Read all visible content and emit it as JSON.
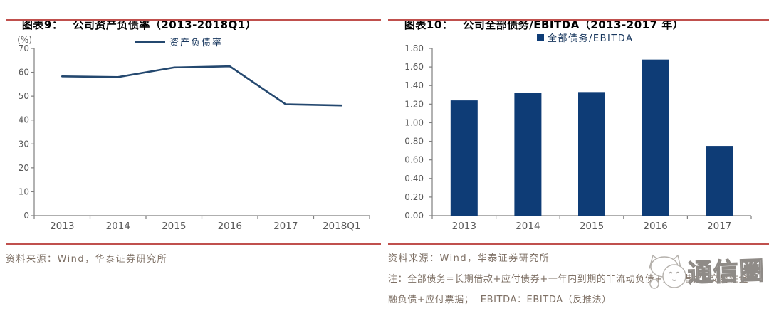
{
  "colors": {
    "navy_line": "#24486f",
    "navy_bar": "#0e3c76",
    "rule_red": "#c0504d",
    "muted_text": "#7e7065",
    "axis": "#7f7f7f",
    "tick_label": "#595959",
    "legend_text": "#17365d"
  },
  "figure9": {
    "label": "图表9：",
    "title": "公司资产负债率（2013-2018Q1）",
    "source": "资料来源：Wind，华泰证券研究所"
  },
  "figure10": {
    "label": "图表10：",
    "title": "公司全部债务/EBITDA（2013-2017 年）",
    "source": "资料来源：Wind，华泰证券研究所",
    "note_line1": "注：全部债务=长期借款+应付债券+一年内到期的非流动负债+短期借款+交易性金",
    "note_line2": "融负债+应付票据；  EBITDA：EBITDA（反推法）"
  },
  "watermark": {
    "text": "通信圈",
    "icon": "cat-face-logo"
  },
  "chart_data": [
    {
      "id": "chart9",
      "type": "line",
      "title": "公司资产负债率（2013-2018Q1）",
      "unit_label": "(%)",
      "legend": [
        "资产负债率"
      ],
      "categories": [
        "2013",
        "2014",
        "2015",
        "2016",
        "2017",
        "2018Q1"
      ],
      "series": [
        {
          "name": "资产负债率",
          "values": [
            58.3,
            58.0,
            62.0,
            62.5,
            46.6,
            46.1
          ]
        }
      ],
      "ylim": [
        0,
        70
      ],
      "yticks": [
        "0",
        "10",
        "20",
        "30",
        "40",
        "50",
        "60",
        "70"
      ],
      "grid": false,
      "legend_position": "top-center"
    },
    {
      "id": "chart10",
      "type": "bar",
      "title": "公司全部债务/EBITDA（2013-2017 年）",
      "unit_label": "",
      "legend": [
        "全部债务/EBITDA"
      ],
      "categories": [
        "2013",
        "2014",
        "2015",
        "2016",
        "2017"
      ],
      "series": [
        {
          "name": "全部债务/EBITDA",
          "values": [
            1.24,
            1.32,
            1.33,
            1.68,
            0.75
          ]
        }
      ],
      "ylim": [
        0,
        1.8
      ],
      "yticks": [
        "0.00",
        "0.20",
        "0.40",
        "0.60",
        "0.80",
        "1.00",
        "1.20",
        "1.40",
        "1.60",
        "1.80"
      ],
      "grid": false,
      "legend_position": "top-center"
    }
  ]
}
